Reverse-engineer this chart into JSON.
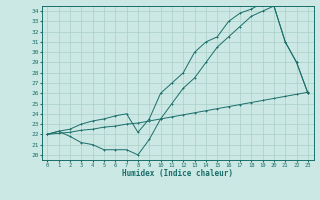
{
  "xlabel": "Humidex (Indice chaleur)",
  "bg_color": "#cce8e4",
  "line_color": "#1a6e6a",
  "grid_color": "#aacfca",
  "xlim": [
    -0.5,
    23.5
  ],
  "ylim": [
    19.5,
    34.5
  ],
  "xticks": [
    0,
    1,
    2,
    3,
    4,
    5,
    6,
    7,
    8,
    9,
    10,
    11,
    12,
    13,
    14,
    15,
    16,
    17,
    18,
    19,
    20,
    21,
    22,
    23
  ],
  "yticks": [
    20,
    21,
    22,
    23,
    24,
    25,
    26,
    27,
    28,
    29,
    30,
    31,
    32,
    33,
    34
  ],
  "line1_x": [
    0,
    1,
    2,
    3,
    4,
    5,
    6,
    7,
    8,
    9,
    10,
    11,
    12,
    13,
    14,
    15,
    16,
    17,
    18,
    19,
    20,
    21,
    22,
    23
  ],
  "line1_y": [
    22.0,
    22.1,
    22.2,
    22.4,
    22.5,
    22.7,
    22.8,
    23.0,
    23.1,
    23.3,
    23.5,
    23.7,
    23.9,
    24.1,
    24.3,
    24.5,
    24.7,
    24.9,
    25.1,
    25.3,
    25.5,
    25.7,
    25.9,
    26.1
  ],
  "line2_x": [
    0,
    1,
    2,
    3,
    4,
    5,
    6,
    7,
    8,
    9,
    10,
    11,
    12,
    13,
    14,
    15,
    16,
    17,
    18,
    19,
    20,
    21,
    22,
    23
  ],
  "line2_y": [
    22.0,
    22.3,
    21.8,
    21.2,
    21.0,
    20.5,
    20.5,
    20.5,
    20.0,
    21.5,
    23.5,
    25.0,
    26.5,
    27.5,
    29.0,
    30.5,
    31.5,
    32.5,
    33.5,
    34.0,
    34.5,
    31.0,
    29.0,
    26.0
  ],
  "line3_x": [
    0,
    1,
    2,
    3,
    4,
    5,
    6,
    7,
    8,
    9,
    10,
    11,
    12,
    13,
    14,
    15,
    16,
    17,
    18,
    19,
    20,
    21,
    22,
    23
  ],
  "line3_y": [
    22.0,
    22.3,
    22.5,
    23.0,
    23.3,
    23.5,
    23.8,
    24.0,
    22.2,
    23.5,
    26.0,
    27.0,
    28.0,
    30.0,
    31.0,
    31.5,
    33.0,
    33.8,
    34.2,
    34.8,
    34.5,
    31.0,
    29.0,
    26.0
  ]
}
